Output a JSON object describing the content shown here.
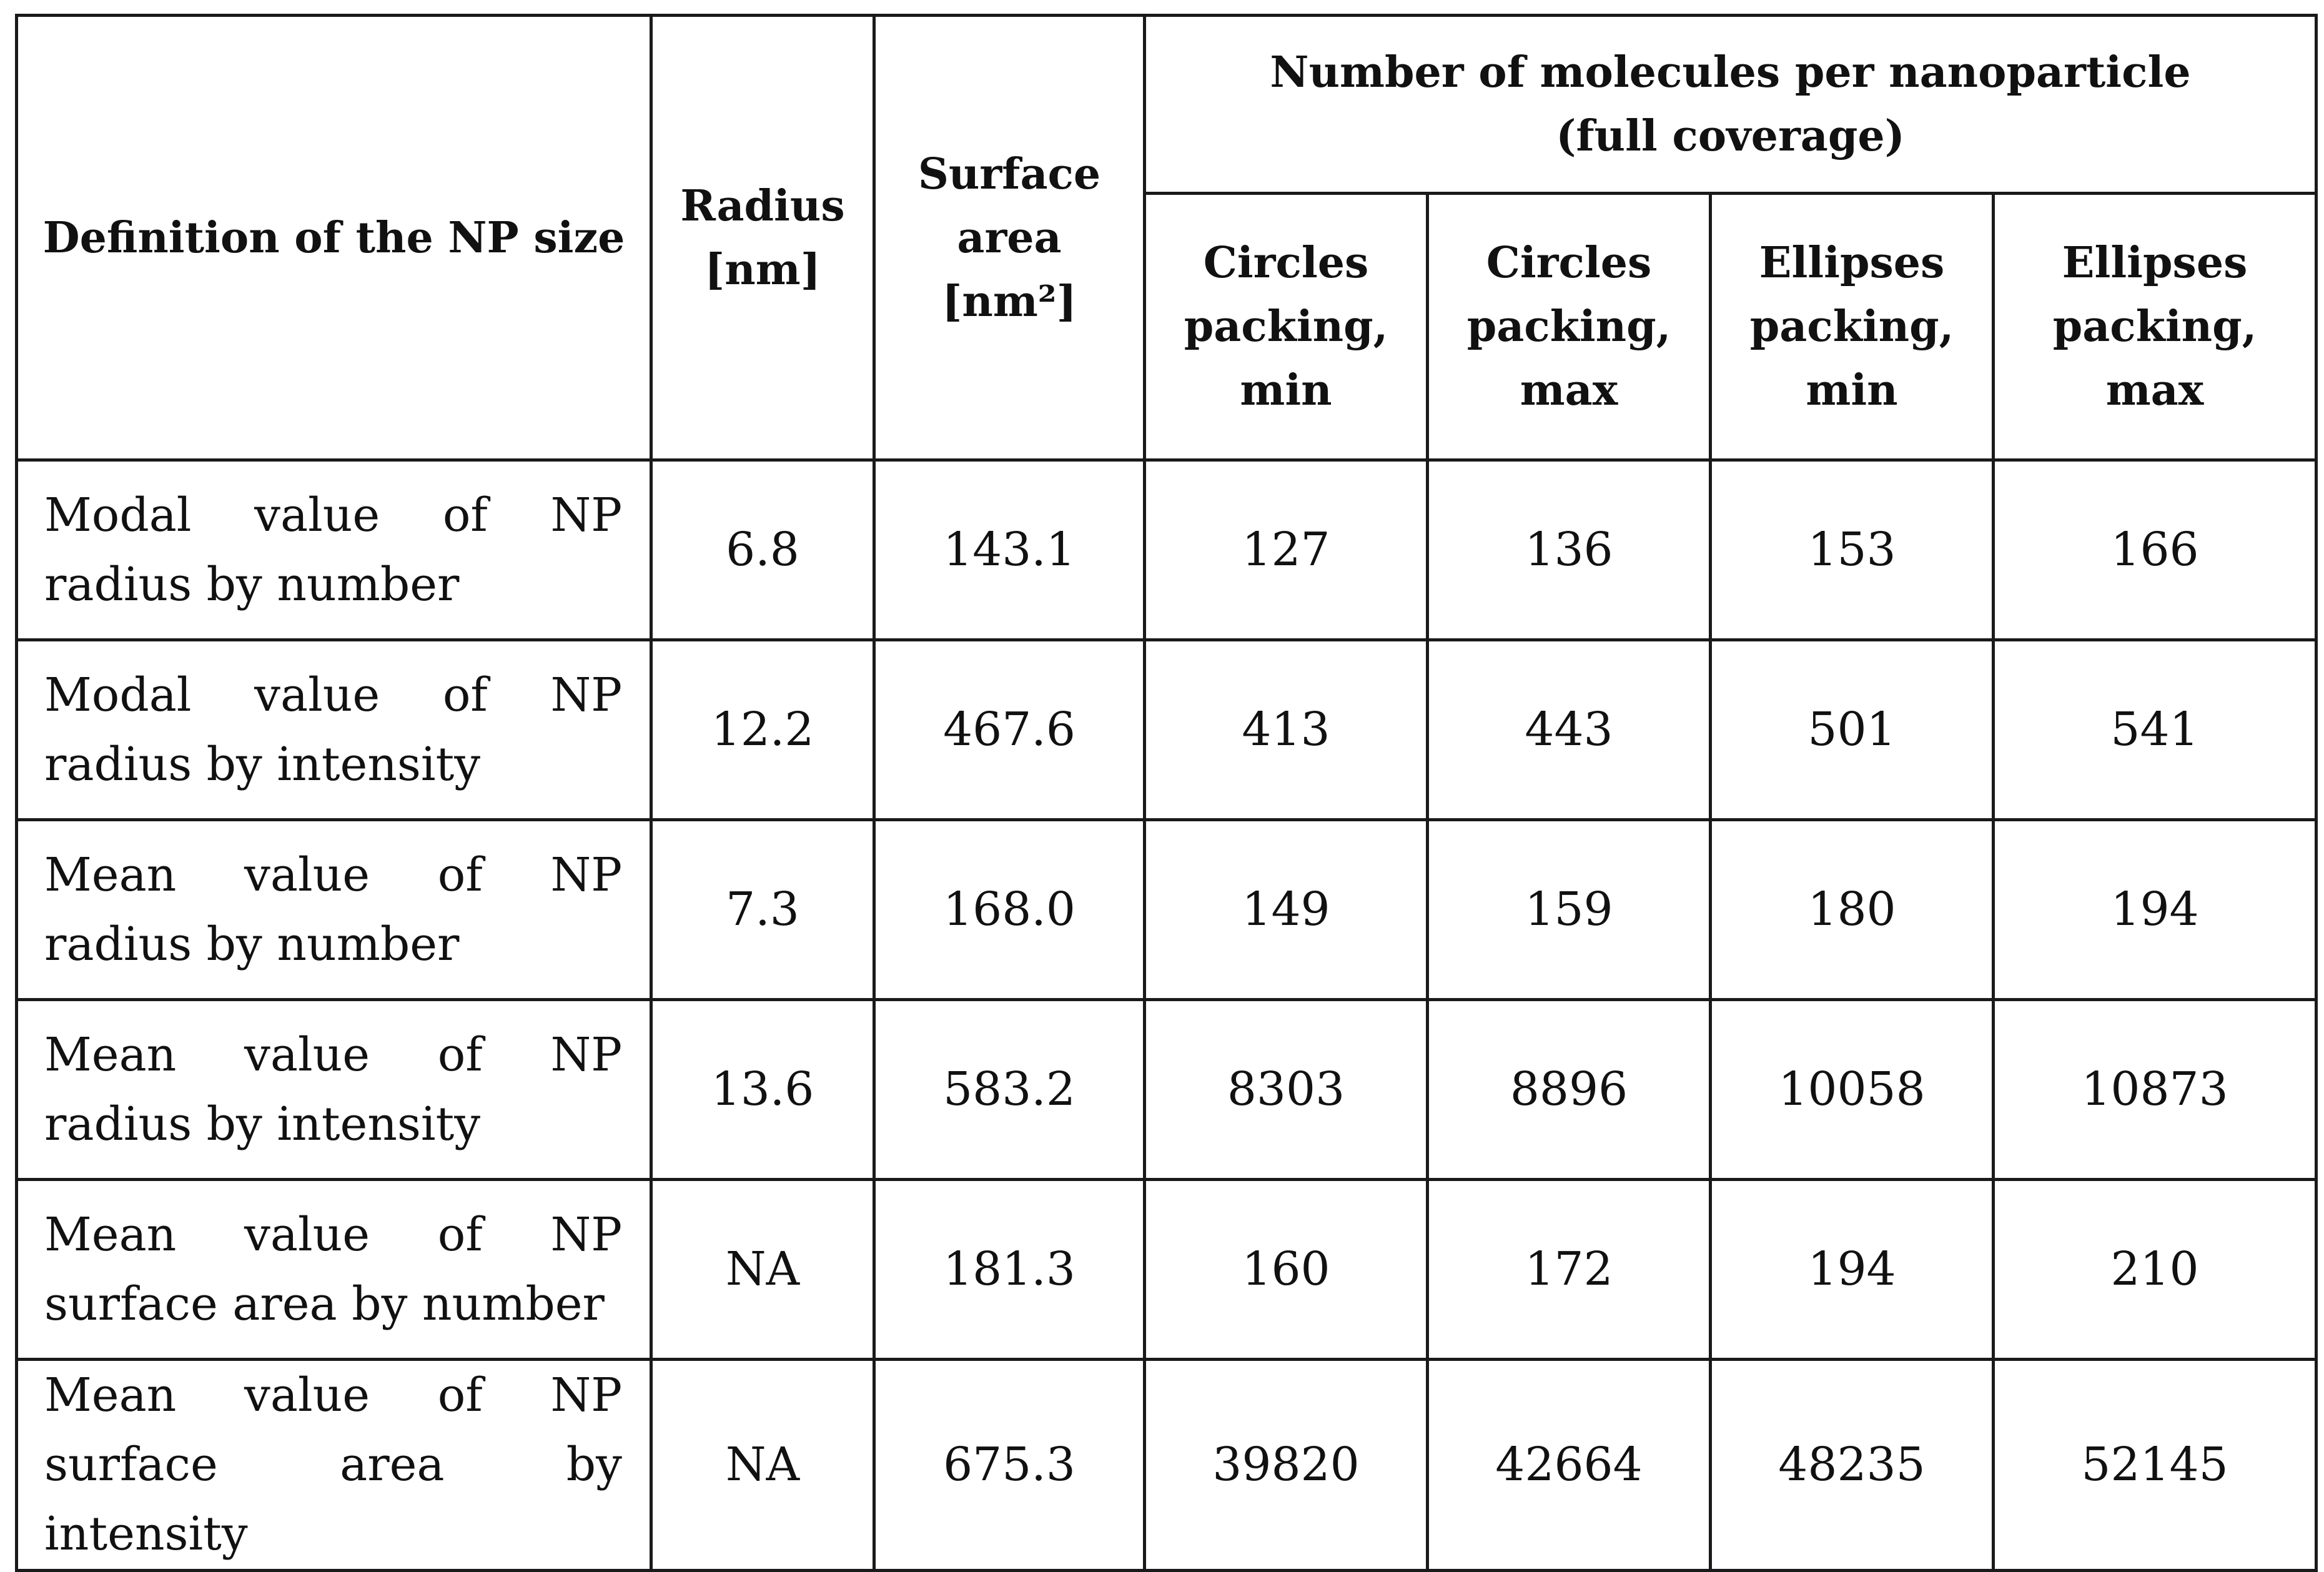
{
  "table": {
    "headers": {
      "definition": "Definition of the NP size",
      "radius": [
        "Radius",
        "[nm]"
      ],
      "surface_area": [
        "Surface",
        "area",
        "[nm²]"
      ],
      "group": [
        "Number of molecules per nanoparticle",
        "(full coverage)"
      ],
      "circles_min": [
        "Circles",
        "packing,",
        "min"
      ],
      "circles_max": [
        "Circles",
        "packing,",
        "max"
      ],
      "ellipses_min": [
        "Ellipses",
        "packing,",
        "min"
      ],
      "ellipses_max": [
        "Ellipses",
        "packing,",
        "max"
      ]
    },
    "rows": [
      {
        "definition": "Modal value of NP radius by number",
        "radius": "6.8",
        "area": "143.1",
        "circles_min": "127",
        "circles_max": "136",
        "ellipses_min": "153",
        "ellipses_max": "166"
      },
      {
        "definition": "Modal value of NP radius by intensity",
        "radius": "12.2",
        "area": "467.6",
        "circles_min": "413",
        "circles_max": "443",
        "ellipses_min": "501",
        "ellipses_max": "541"
      },
      {
        "definition": "Mean value of NP radius by number",
        "radius": "7.3",
        "area": "168.0",
        "circles_min": "149",
        "circles_max": "159",
        "ellipses_min": "180",
        "ellipses_max": "194"
      },
      {
        "definition": "Mean value of NP radius by intensity",
        "radius": "13.6",
        "area": "583.2",
        "circles_min": "8303",
        "circles_max": "8896",
        "ellipses_min": "10058",
        "ellipses_max": "10873"
      },
      {
        "definition": "Mean value of NP surface area by number",
        "radius": "NA",
        "area": "181.3",
        "circles_min": "160",
        "circles_max": "172",
        "ellipses_min": "194",
        "ellipses_max": "210"
      },
      {
        "definition": "Mean value of NP surface area by intensity",
        "radius": "NA",
        "area": "675.3",
        "circles_min": "39820",
        "circles_max": "42664",
        "ellipses_min": "48235",
        "ellipses_max": "52145"
      }
    ]
  }
}
